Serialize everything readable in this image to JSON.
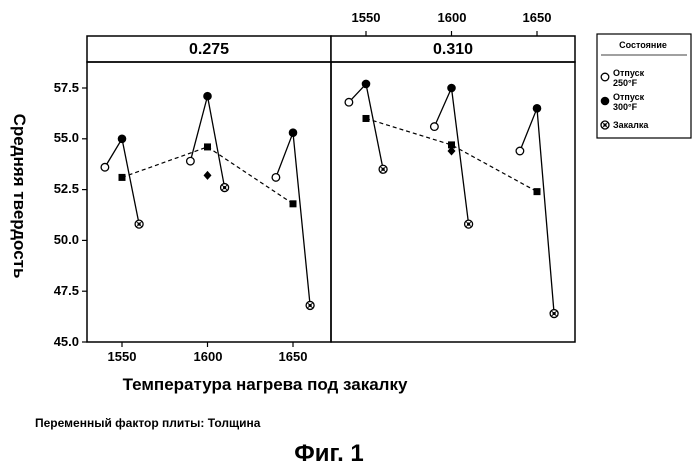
{
  "chart_data": {
    "type": "line",
    "ylabel": "Средняя твердость",
    "xlabel": "Температура нагрева под закалку",
    "ylim": [
      45.0,
      58.5
    ],
    "yticks": [
      "45.0",
      "47.5",
      "50.0",
      "52.5",
      "55.0",
      "57.5"
    ],
    "xticks": [
      "1550",
      "1600",
      "1650"
    ],
    "panel_note": "Переменный фактор плиты: Толщина",
    "figure_label": "Фиг. 1",
    "legend": {
      "title": "Состояние",
      "entries": [
        {
          "key": "t250",
          "line1": "Отпуск",
          "line2": "250°F",
          "marker": "open-circle"
        },
        {
          "key": "t300",
          "line1": "Отпуск",
          "line2": "300°F",
          "marker": "filled-circle"
        },
        {
          "key": "quench",
          "line1": "Закалка",
          "line2": "",
          "marker": "crossed-circle"
        }
      ]
    },
    "panels": [
      {
        "label": "0.275",
        "groups": [
          {
            "temp": 1550,
            "points": [
              {
                "cond": "t250",
                "x": 1540,
                "y": 53.6
              },
              {
                "cond": "t300",
                "x": 1550,
                "y": 55.0
              },
              {
                "cond": "quench",
                "x": 1560,
                "y": 50.8
              }
            ],
            "mean": 53.1,
            "diamond": null
          },
          {
            "temp": 1600,
            "points": [
              {
                "cond": "t250",
                "x": 1590,
                "y": 53.9
              },
              {
                "cond": "t300",
                "x": 1600,
                "y": 57.1
              },
              {
                "cond": "quench",
                "x": 1610,
                "y": 52.6
              }
            ],
            "mean": 54.6,
            "diamond": 53.2
          },
          {
            "temp": 1650,
            "points": [
              {
                "cond": "t250",
                "x": 1640,
                "y": 53.1
              },
              {
                "cond": "t300",
                "x": 1650,
                "y": 55.3
              },
              {
                "cond": "quench",
                "x": 1660,
                "y": 46.8
              }
            ],
            "mean": 51.8,
            "diamond": null
          }
        ]
      },
      {
        "label": "0.310",
        "groups": [
          {
            "temp": 1550,
            "points": [
              {
                "cond": "t250",
                "x": 1540,
                "y": 56.8
              },
              {
                "cond": "t300",
                "x": 1550,
                "y": 57.7
              },
              {
                "cond": "quench",
                "x": 1560,
                "y": 53.5
              }
            ],
            "mean": 56.0,
            "diamond": null
          },
          {
            "temp": 1600,
            "points": [
              {
                "cond": "t250",
                "x": 1590,
                "y": 55.6
              },
              {
                "cond": "t300",
                "x": 1600,
                "y": 57.5
              },
              {
                "cond": "quench",
                "x": 1610,
                "y": 50.8
              }
            ],
            "mean": 54.7,
            "diamond": 54.4
          },
          {
            "temp": 1650,
            "points": [
              {
                "cond": "t250",
                "x": 1640,
                "y": 54.4
              },
              {
                "cond": "t300",
                "x": 1650,
                "y": 56.5
              },
              {
                "cond": "quench",
                "x": 1660,
                "y": 46.4
              }
            ],
            "mean": 52.4,
            "diamond": null
          }
        ]
      }
    ]
  }
}
